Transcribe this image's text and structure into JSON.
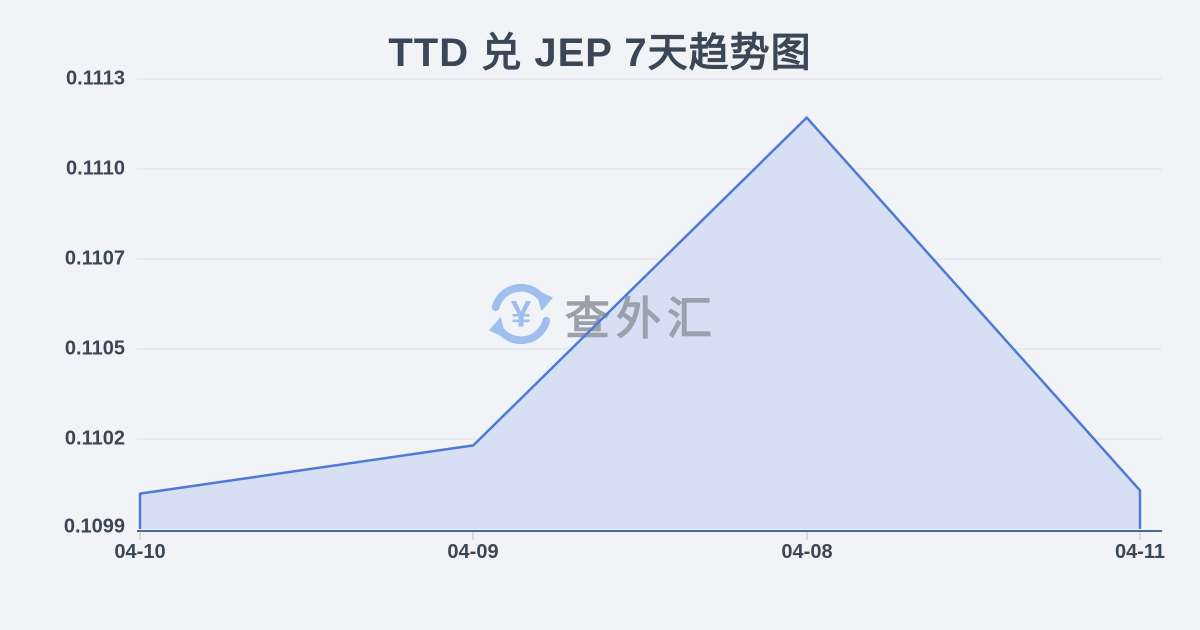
{
  "title": "TTD 兑 JEP 7天趋势图",
  "watermark": {
    "text": "查外汇",
    "currency_symbol": "¥"
  },
  "colors": {
    "background": "#f2f3f6",
    "text": "#3b4656",
    "line": "#4e79d6",
    "fill": "#d7dff4",
    "axis": "#44699c",
    "gridline": "#e6e8ed",
    "tick": "#ccd0d6",
    "watermark-blue": "#9fc0ee",
    "watermark-gray": "#9aa1aa"
  },
  "chart_data": {
    "type": "area",
    "title": "TTD 兑 JEP 7天趋势图",
    "categories": [
      "04-10",
      "04-09",
      "04-08",
      "04-11"
    ],
    "values": [
      0.11001,
      0.11016,
      0.11118,
      0.11002
    ],
    "series_name": "TTD/JEP",
    "xlabel": "",
    "ylabel": "",
    "ylim": [
      0.1099,
      0.1113
    ],
    "y_tick_labels": [
      "0.1113",
      "0.1110",
      "0.1107",
      "0.1105",
      "0.1102",
      "0.1099"
    ],
    "grid": true,
    "legend": false
  }
}
